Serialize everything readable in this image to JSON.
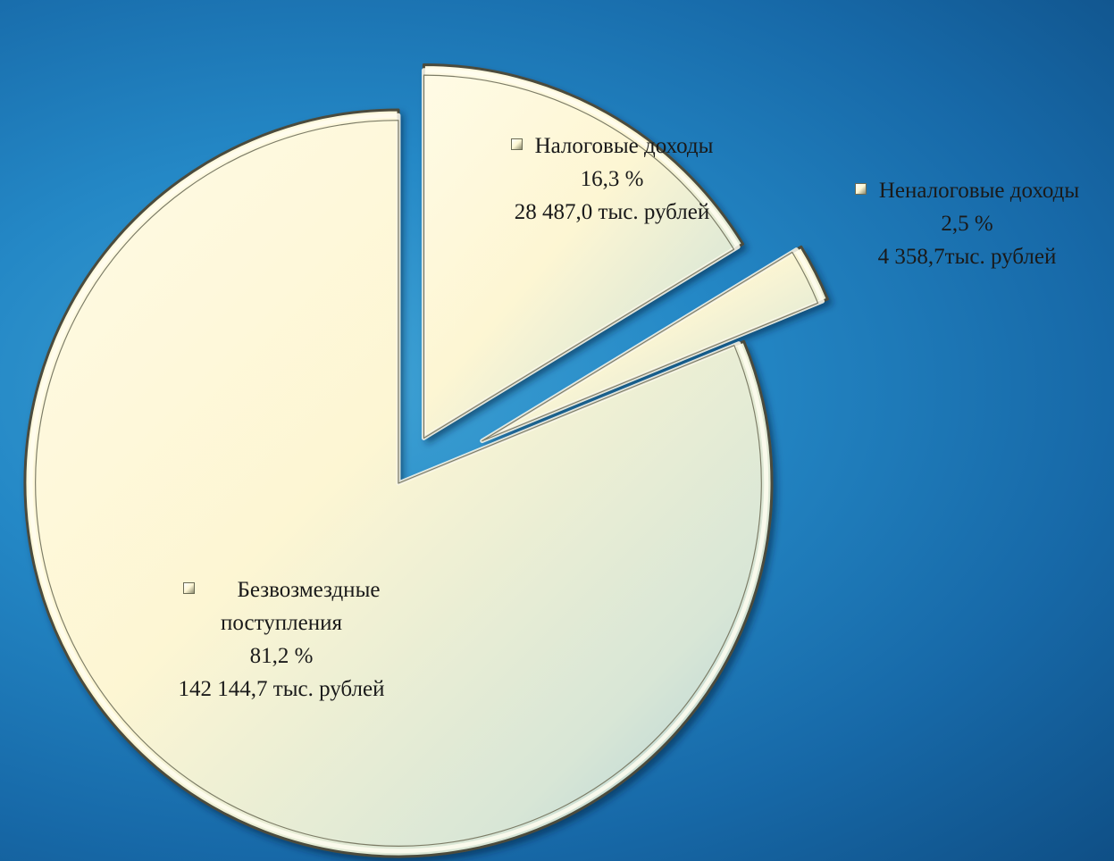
{
  "chart_data": {
    "type": "pie",
    "unit": "тыс. рублей",
    "slices": [
      {
        "name": "Налоговые доходы",
        "name_lines": [
          "Налоговые доходы"
        ],
        "percent": 16.3,
        "percent_label": "16,3 %",
        "value": 28487.0,
        "value_label": "28 487,0 тыс. рублей"
      },
      {
        "name": "Неналоговые доходы",
        "name_lines": [
          "Неналоговые доходы"
        ],
        "percent": 2.5,
        "percent_label": "2,5 %",
        "value": 4358.7,
        "value_label": "4 358,7тыс. рублей"
      },
      {
        "name": "Безвозмездные поступления",
        "name_lines": [
          "Безвозмездные",
          "поступления"
        ],
        "percent": 81.2,
        "percent_label": "81,2 %",
        "value": 142144.7,
        "value_label": "142 144,7 тыс. рублей"
      }
    ],
    "slice_fill": "#fdf6d3",
    "slice_fill_shade": "#a8ccd4",
    "background": "#2488c6"
  }
}
